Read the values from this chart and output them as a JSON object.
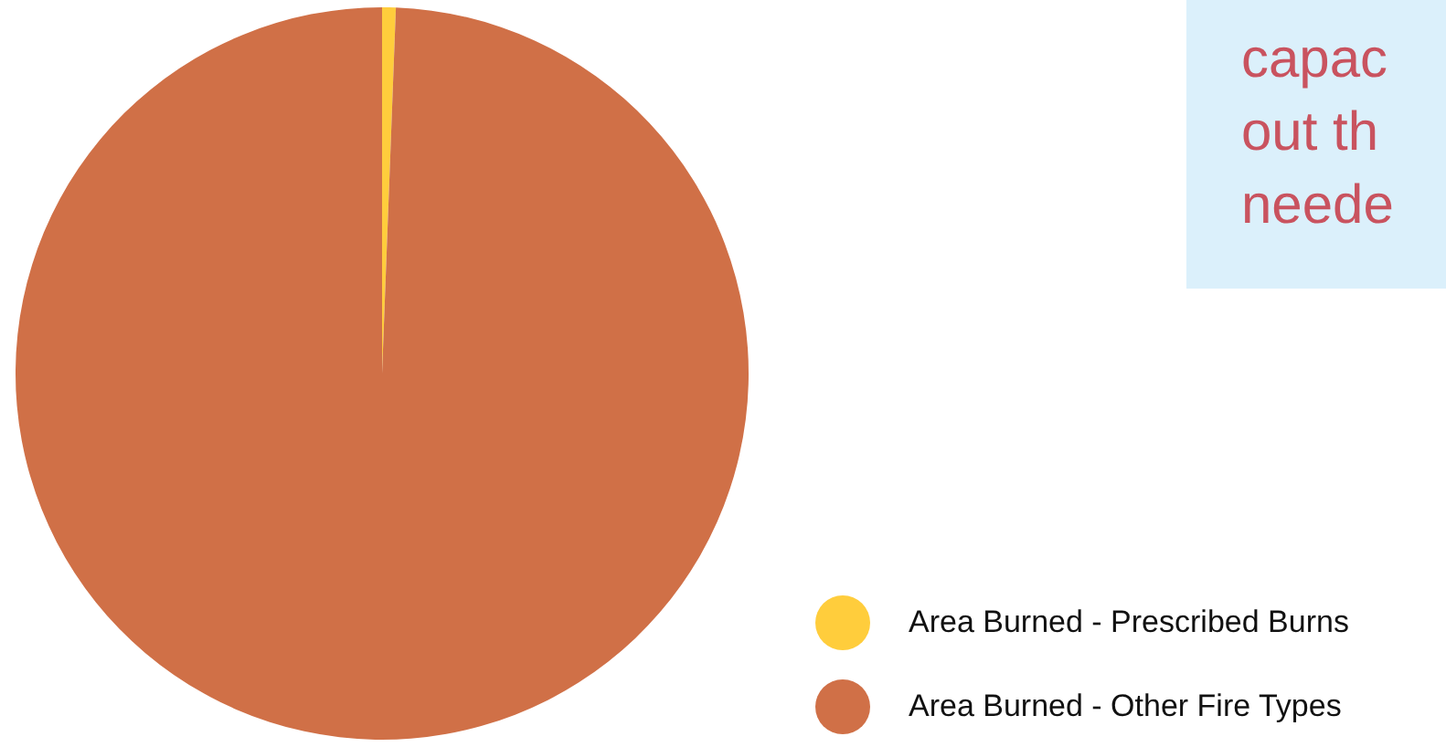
{
  "chart_data": {
    "type": "pie",
    "categories": [
      "Area Burned - Prescribed Burns",
      "Area Burned - Other Fire Types"
    ],
    "values": [
      0.6,
      99.4
    ],
    "colors": [
      "#ffcd3c",
      "#d07047"
    ],
    "legend": "bottom right",
    "annotations": [
      "capac",
      "out th",
      "neede"
    ]
  }
}
